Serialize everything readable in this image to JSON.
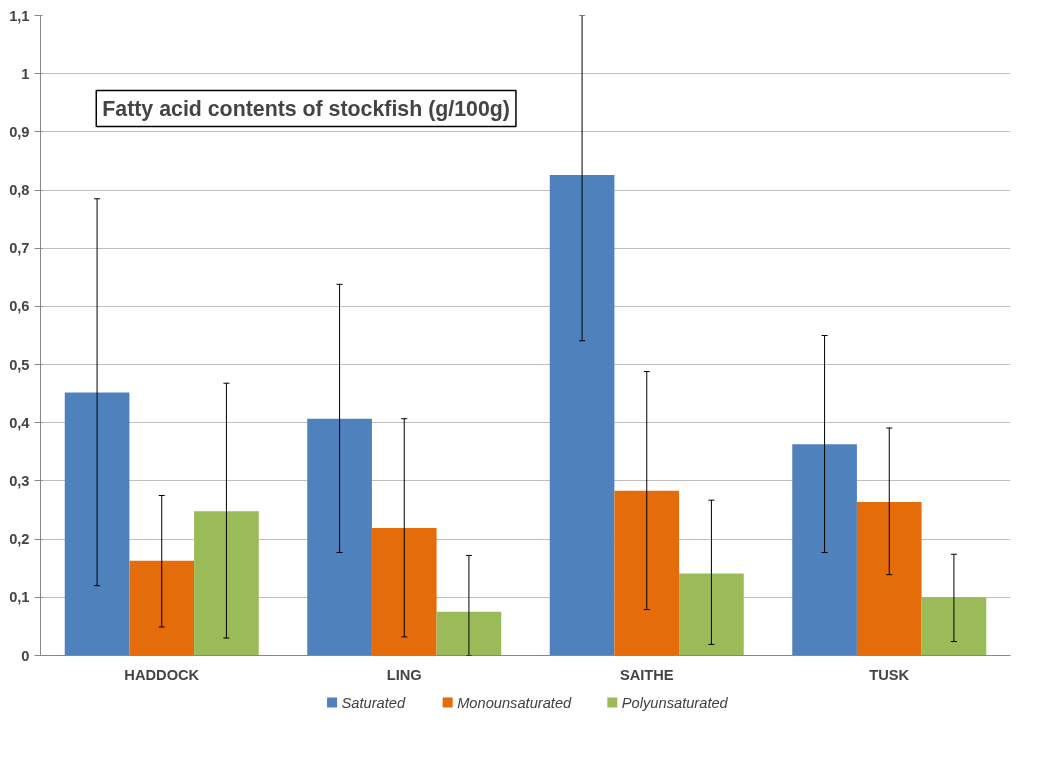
{
  "chart_data": {
    "type": "bar",
    "title": "Fatty acid contents of stockfish (g/100g)",
    "categories": [
      "HADDOCK",
      "LING",
      "SAITHE",
      "TUSK"
    ],
    "series": [
      {
        "name": "Saturated",
        "color": "#4f81bd",
        "values": [
          0.452,
          0.407,
          0.826,
          0.363
        ],
        "errors": [
          [
            0.12,
            0.785
          ],
          [
            0.177,
            0.638
          ],
          [
            0.541,
            1.1
          ],
          [
            0.177,
            0.55
          ]
        ]
      },
      {
        "name": "Monounsaturated",
        "color": "#e46c0a",
        "values": [
          0.163,
          0.219,
          0.283,
          0.264
        ],
        "errors": [
          [
            0.049,
            0.275
          ],
          [
            0.032,
            0.407
          ],
          [
            0.079,
            0.488
          ],
          [
            0.139,
            0.391
          ]
        ]
      },
      {
        "name": "Polyunsaturated",
        "color": "#9bbb59",
        "values": [
          0.248,
          0.075,
          0.141,
          0.1
        ],
        "errors": [
          [
            0.03,
            0.468
          ],
          [
            0,
            0.172
          ],
          [
            0.019,
            0.267
          ],
          [
            0.024,
            0.174
          ]
        ]
      }
    ],
    "ylim": [
      0,
      1.1
    ],
    "yticks": [
      0,
      {
        "value": 0.1,
        "label": "0,1"
      },
      {
        "value": 0.2,
        "label": "0,2"
      },
      {
        "value": 0.3,
        "label": "0,3"
      },
      {
        "value": 0.4,
        "label": "0,4"
      },
      {
        "value": 0.5,
        "label": "0,5"
      },
      {
        "value": 0.6,
        "label": "0,6"
      },
      {
        "value": 0.7,
        "label": "0,7"
      },
      {
        "value": 0.8,
        "label": "0,8"
      },
      {
        "value": 0.9,
        "label": "0,9"
      },
      1,
      {
        "value": 1.1,
        "label": "1,1"
      }
    ],
    "grid": "y",
    "legend": "bottom"
  }
}
